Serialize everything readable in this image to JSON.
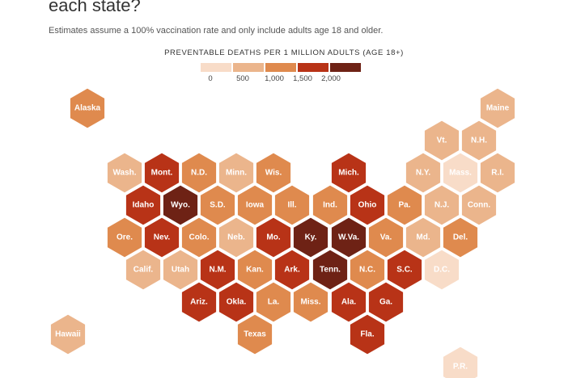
{
  "header": {
    "title": "each state?",
    "subtitle": "Estimates assume a 100% vaccination rate and only include adults age 18 and older."
  },
  "legend": {
    "title": "PREVENTABLE DEATHS PER 1 MILLION ADULTS (AGE 18+)",
    "ticks": [
      "0",
      "500",
      "1,000",
      "1,500",
      "2,000"
    ],
    "colors": [
      "#f8dcc8",
      "#ebb58c",
      "#df8a4e",
      "#b83317",
      "#6e2215"
    ]
  },
  "states": [
    {
      "label": "Alaska",
      "bin": 2
    },
    {
      "label": "Maine",
      "bin": 1
    },
    {
      "label": "Vt.",
      "bin": 1
    },
    {
      "label": "N.H.",
      "bin": 1
    },
    {
      "label": "Wash.",
      "bin": 1
    },
    {
      "label": "Mont.",
      "bin": 3
    },
    {
      "label": "N.D.",
      "bin": 2
    },
    {
      "label": "Minn.",
      "bin": 1
    },
    {
      "label": "Wis.",
      "bin": 2
    },
    {
      "label": "Mich.",
      "bin": 3
    },
    {
      "label": "N.Y.",
      "bin": 1
    },
    {
      "label": "Mass.",
      "bin": 0
    },
    {
      "label": "R.I.",
      "bin": 1
    },
    {
      "label": "Idaho",
      "bin": 3
    },
    {
      "label": "Wyo.",
      "bin": 4
    },
    {
      "label": "S.D.",
      "bin": 2
    },
    {
      "label": "Iowa",
      "bin": 2
    },
    {
      "label": "Ill.",
      "bin": 2
    },
    {
      "label": "Ind.",
      "bin": 2
    },
    {
      "label": "Ohio",
      "bin": 3
    },
    {
      "label": "Pa.",
      "bin": 2
    },
    {
      "label": "N.J.",
      "bin": 1
    },
    {
      "label": "Conn.",
      "bin": 1
    },
    {
      "label": "Ore.",
      "bin": 2
    },
    {
      "label": "Nev.",
      "bin": 3
    },
    {
      "label": "Colo.",
      "bin": 2
    },
    {
      "label": "Neb.",
      "bin": 1
    },
    {
      "label": "Mo.",
      "bin": 3
    },
    {
      "label": "Ky.",
      "bin": 4
    },
    {
      "label": "W.Va.",
      "bin": 4
    },
    {
      "label": "Va.",
      "bin": 2
    },
    {
      "label": "Md.",
      "bin": 1
    },
    {
      "label": "Del.",
      "bin": 2
    },
    {
      "label": "Calif.",
      "bin": 1
    },
    {
      "label": "Utah",
      "bin": 1
    },
    {
      "label": "N.M.",
      "bin": 3
    },
    {
      "label": "Kan.",
      "bin": 2
    },
    {
      "label": "Ark.",
      "bin": 3
    },
    {
      "label": "Tenn.",
      "bin": 4
    },
    {
      "label": "N.C.",
      "bin": 2
    },
    {
      "label": "S.C.",
      "bin": 3
    },
    {
      "label": "D.C.",
      "bin": 0
    },
    {
      "label": "Ariz.",
      "bin": 3
    },
    {
      "label": "Okla.",
      "bin": 3
    },
    {
      "label": "La.",
      "bin": 2
    },
    {
      "label": "Miss.",
      "bin": 2
    },
    {
      "label": "Ala.",
      "bin": 3
    },
    {
      "label": "Ga.",
      "bin": 3
    },
    {
      "label": "Hawaii",
      "bin": 1
    },
    {
      "label": "Texas",
      "bin": 2
    },
    {
      "label": "Fla.",
      "bin": 3
    },
    {
      "label": "P.R.",
      "bin": 0
    }
  ]
}
